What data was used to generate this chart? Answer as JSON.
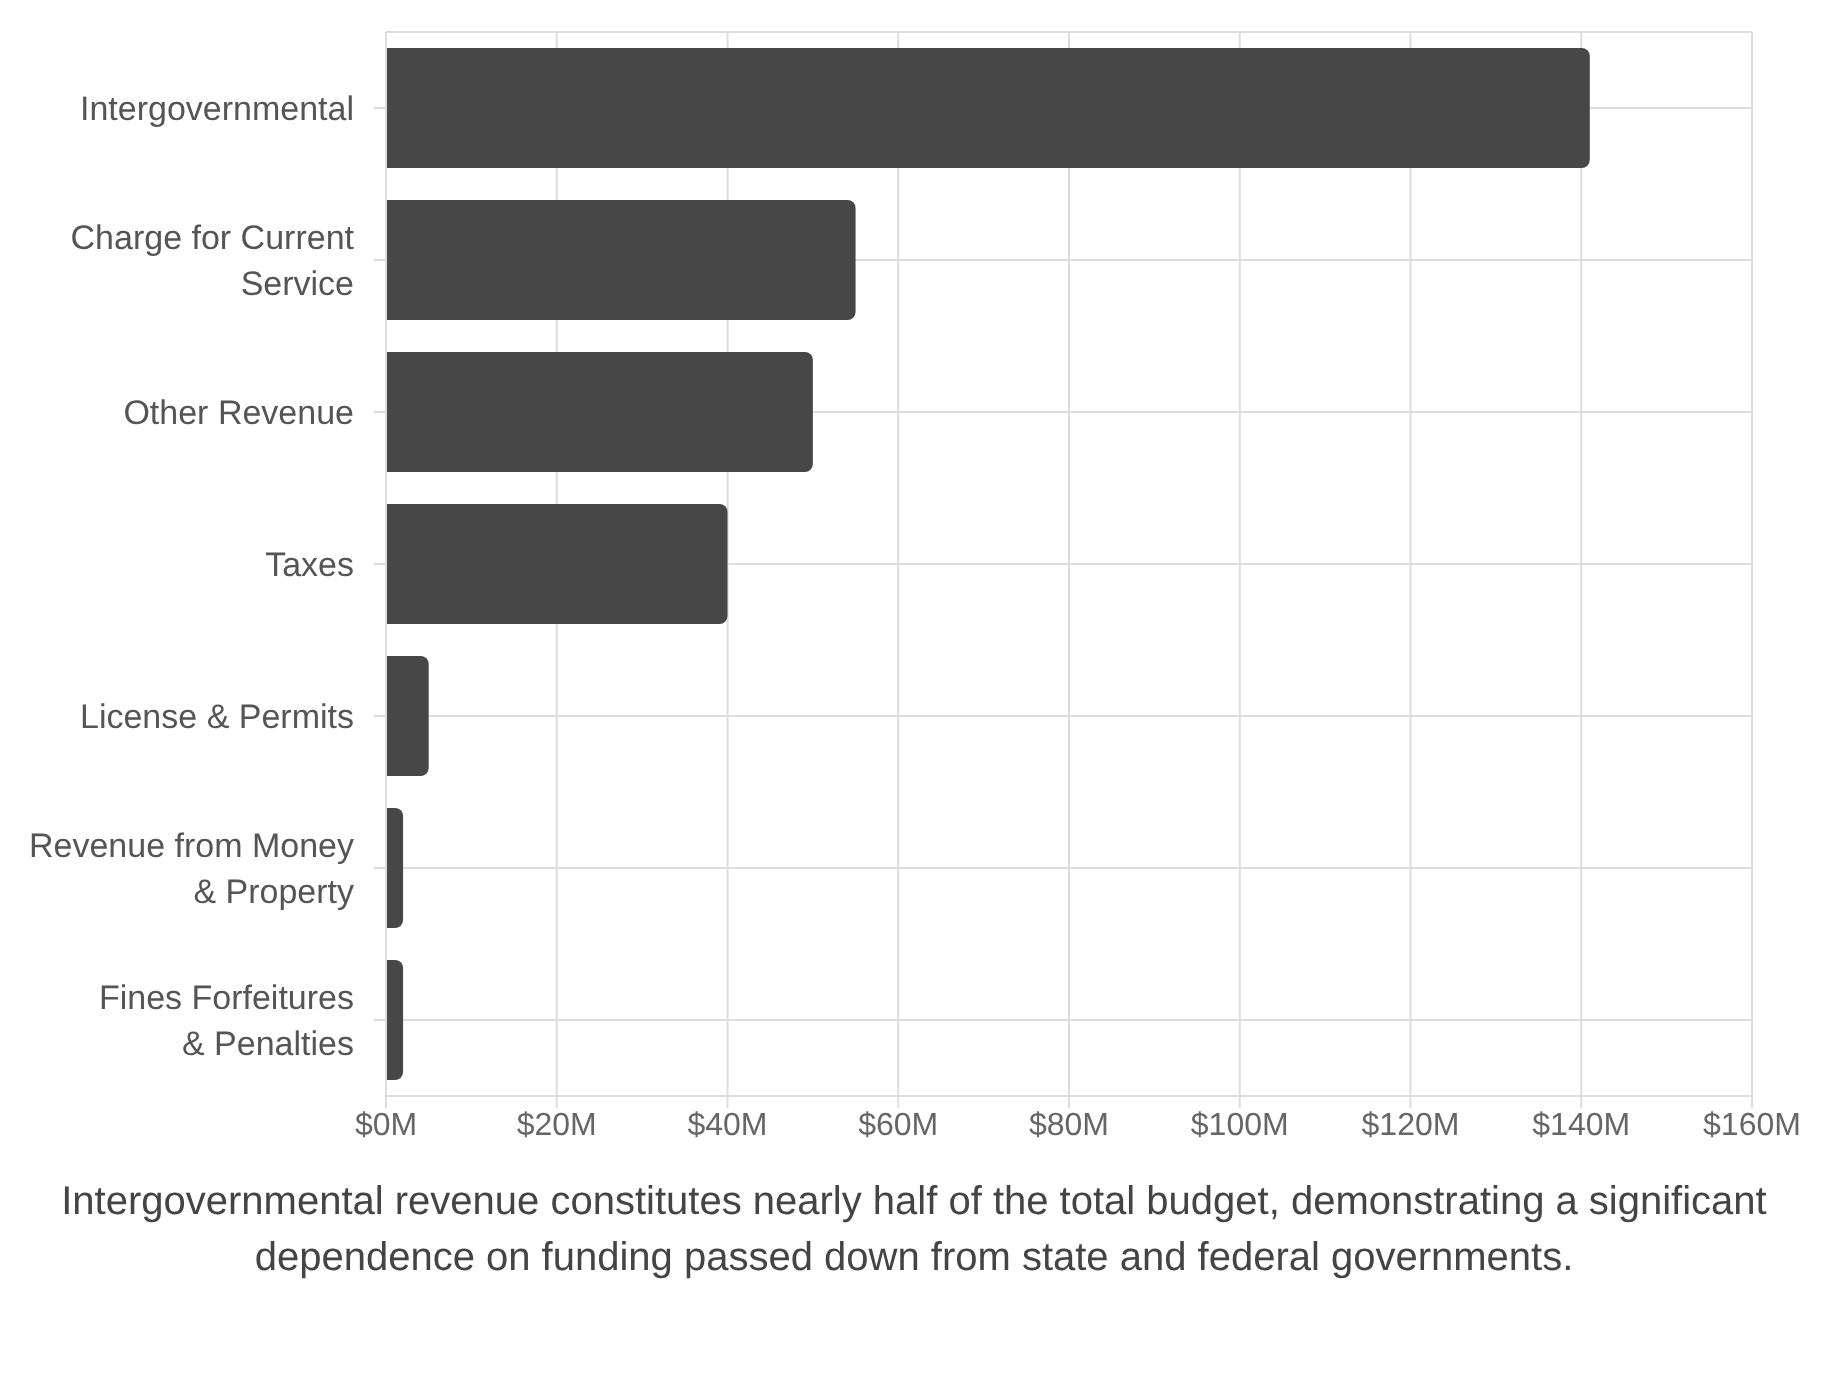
{
  "chart_data": {
    "type": "bar",
    "orientation": "horizontal",
    "categories": [
      "Intergovernmental",
      "Charge for Current Service",
      "Other Revenue",
      "Taxes",
      "License & Permits",
      "Revenue from Money & Property",
      "Fines Forfeitures & Penalties"
    ],
    "values": [
      141,
      55,
      50,
      40,
      5,
      2,
      2
    ],
    "color": "#474747",
    "xlim": [
      0,
      160
    ],
    "xticks": [
      {
        "value": 0,
        "label": "$0M"
      },
      {
        "value": 20,
        "label": "$20M"
      },
      {
        "value": 40,
        "label": "$40M"
      },
      {
        "value": 60,
        "label": "$60M"
      },
      {
        "value": 80,
        "label": "$80M"
      },
      {
        "value": 100,
        "label": "$100M"
      },
      {
        "value": 120,
        "label": "$120M"
      },
      {
        "value": 140,
        "label": "$140M"
      },
      {
        "value": 160,
        "label": "$160M"
      }
    ],
    "grid": true,
    "annotations": [
      "Intergovernmental revenue constitutes nearly half of the total budget, demonstrating a significant dependence on funding passed down from state and federal governments."
    ]
  }
}
